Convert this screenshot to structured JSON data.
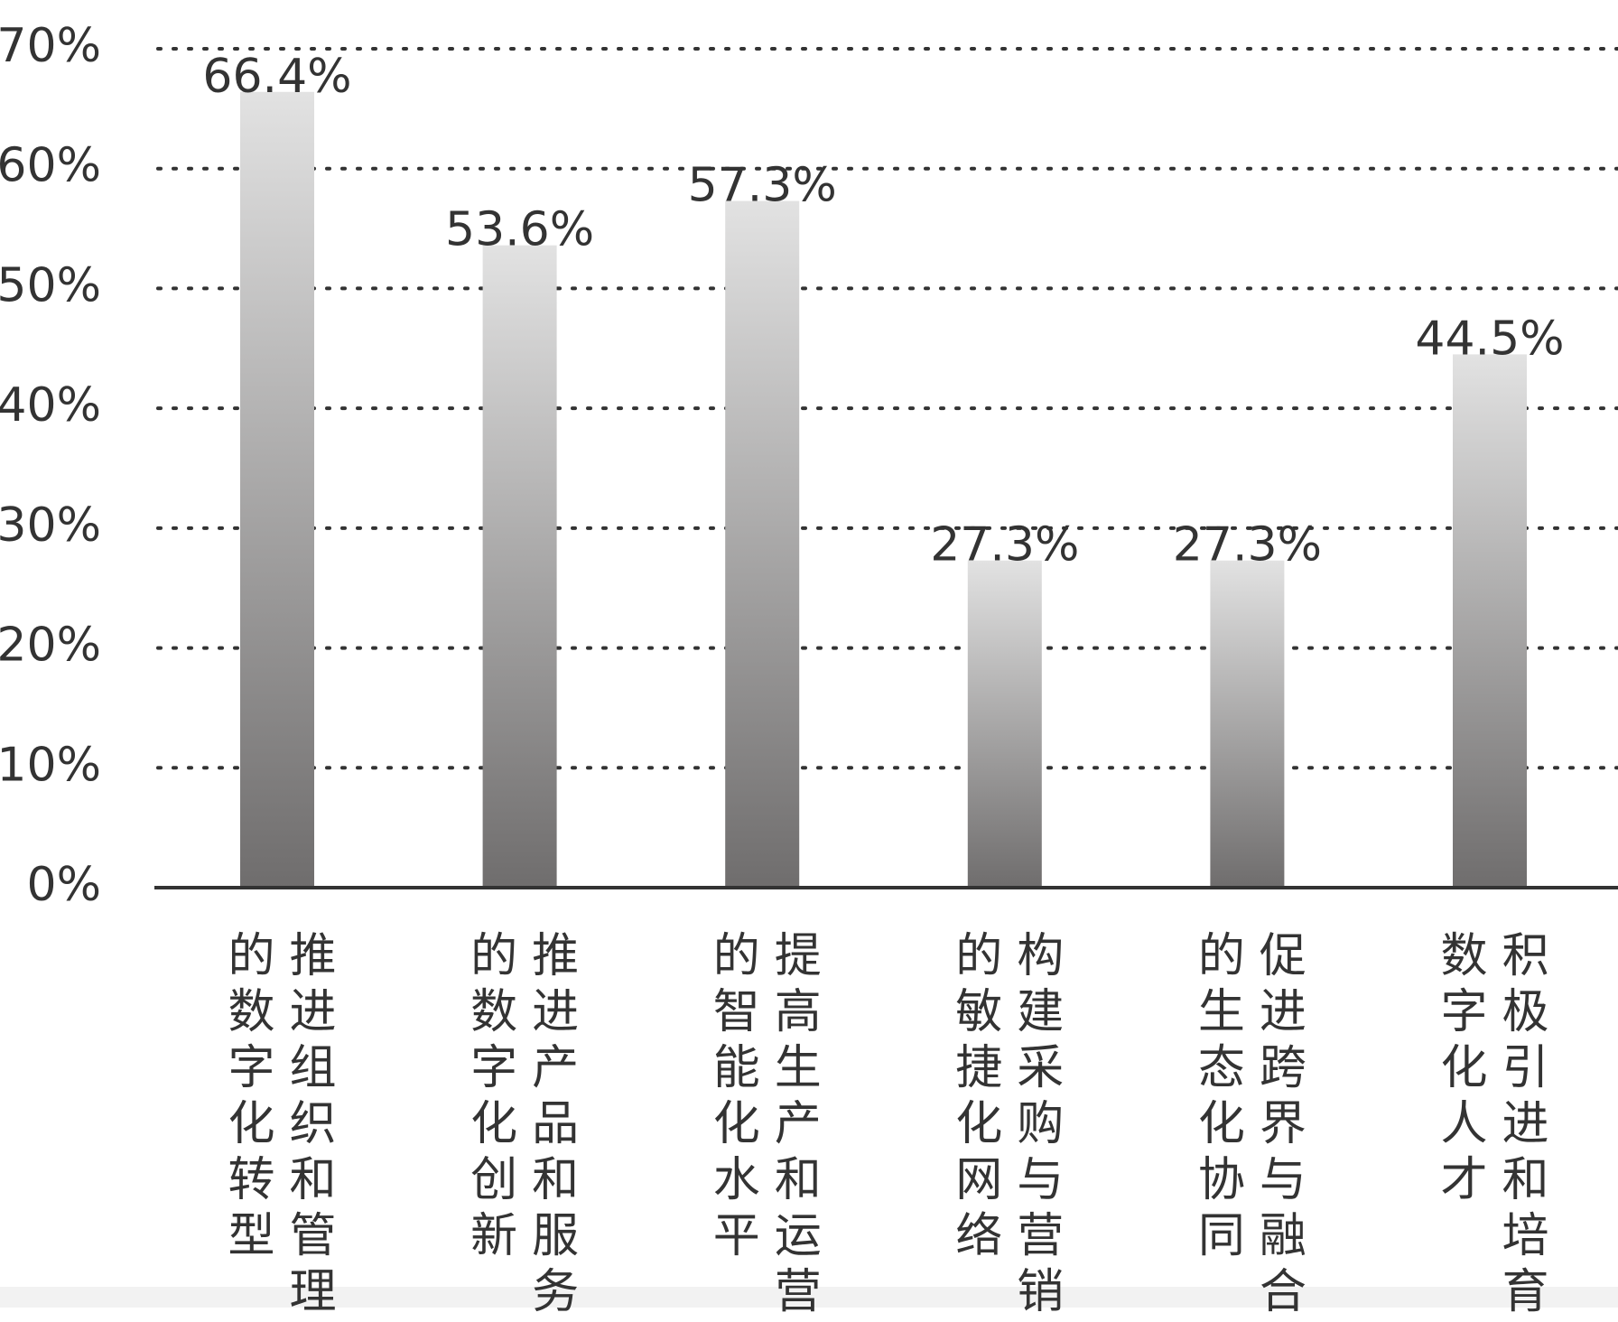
{
  "chart_data": {
    "type": "bar",
    "categories": [
      "推进组织和管理的数字化转型",
      "推进产品和服务的数字化创新",
      "提高生产和运营的智能化水平",
      "构建采购与营销的敏捷化网络",
      "促进跨界与融合的生态化协同",
      "积极引进和培育数字化人才"
    ],
    "values": [
      66.4,
      53.6,
      57.3,
      27.3,
      27.3,
      44.5
    ],
    "value_labels": [
      "66.4%",
      "53.6%",
      "57.3%",
      "27.3%",
      "27.3%",
      "44.5%"
    ],
    "ylim": [
      0,
      70
    ],
    "yticks": [
      {
        "value": 0,
        "label": "0%"
      },
      {
        "value": 10,
        "label": "10%"
      },
      {
        "value": 20,
        "label": "20%"
      },
      {
        "value": 30,
        "label": "30%"
      },
      {
        "value": 40,
        "label": "40%"
      },
      {
        "value": 50,
        "label": "50%"
      },
      {
        "value": 60,
        "label": "60%"
      },
      {
        "value": 70,
        "label": "70%"
      }
    ],
    "grid": true
  }
}
